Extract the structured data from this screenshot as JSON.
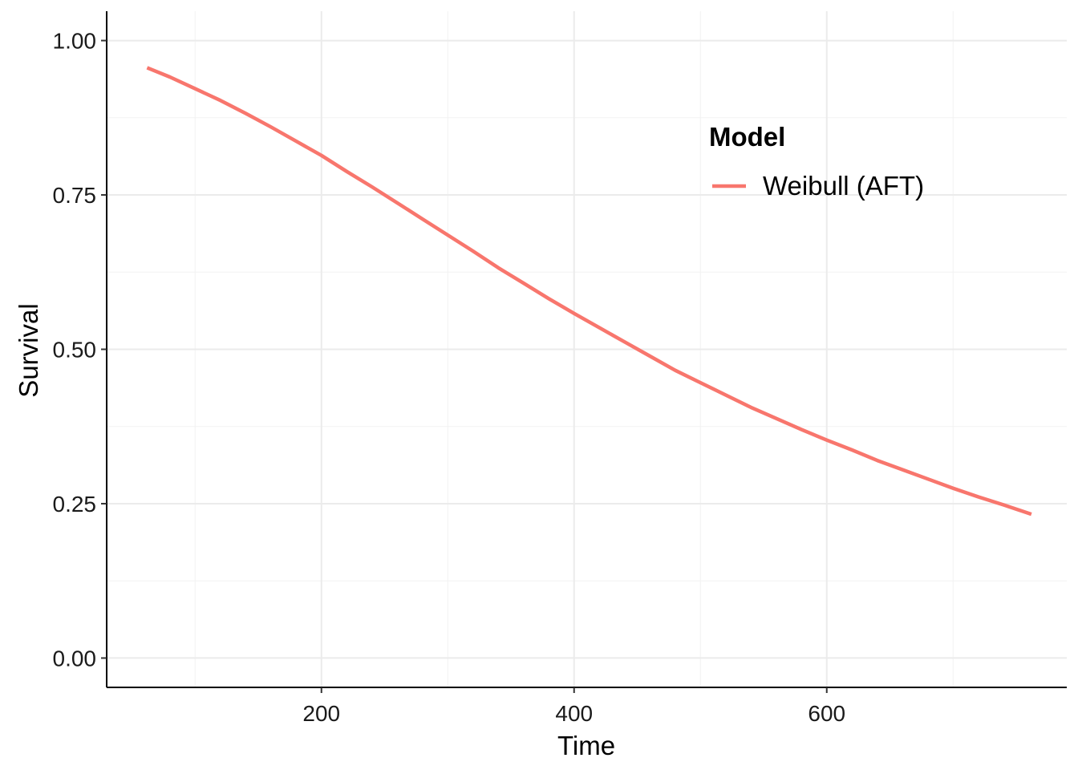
{
  "chart_data": {
    "type": "line",
    "xlabel": "Time",
    "ylabel": "Survival",
    "xlim": [
      30,
      790
    ],
    "ylim": [
      -0.0475,
      1.0475
    ],
    "x_ticks": [
      200,
      400,
      600
    ],
    "x_tick_labels": [
      "200",
      "400",
      "600"
    ],
    "x_minor": [
      100,
      300,
      500,
      700
    ],
    "y_ticks": [
      0,
      0.25,
      0.5,
      0.75,
      1.0
    ],
    "y_tick_labels": [
      "0.00",
      "0.25",
      "0.50",
      "0.75",
      "1.00"
    ],
    "y_minor": [
      0.125,
      0.375,
      0.625,
      0.875
    ],
    "grid": true,
    "legend": {
      "title": "Model",
      "position": "top-right"
    },
    "series": [
      {
        "name": "Weibull (AFT)",
        "color": "#F8766D",
        "x": [
          62,
          80,
          100,
          120,
          140,
          160,
          180,
          200,
          220,
          240,
          260,
          280,
          300,
          320,
          340,
          360,
          380,
          400,
          420,
          440,
          460,
          480,
          500,
          520,
          540,
          560,
          580,
          600,
          620,
          640,
          660,
          680,
          700,
          720,
          740,
          762
        ],
        "y": [
          0.956,
          0.941,
          0.922,
          0.903,
          0.882,
          0.86,
          0.837,
          0.814,
          0.788,
          0.763,
          0.737,
          0.711,
          0.685,
          0.659,
          0.632,
          0.607,
          0.582,
          0.558,
          0.535,
          0.512,
          0.489,
          0.466,
          0.446,
          0.426,
          0.406,
          0.388,
          0.37,
          0.353,
          0.337,
          0.32,
          0.305,
          0.29,
          0.275,
          0.261,
          0.248,
          0.233
        ]
      }
    ]
  }
}
